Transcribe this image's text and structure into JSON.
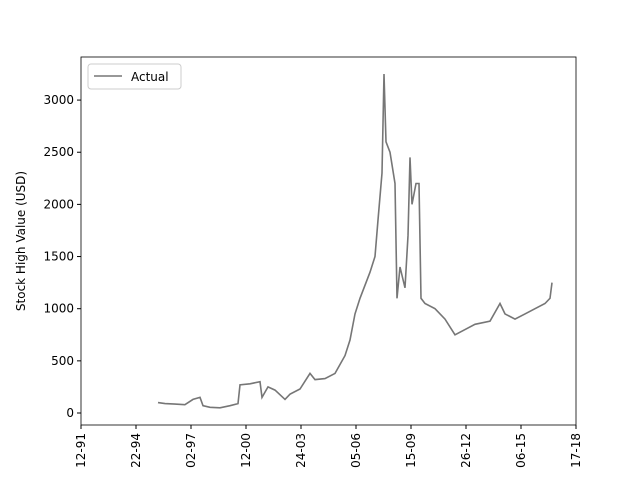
{
  "chart_data": {
    "type": "line",
    "y_label": "Stock High Value (USD)",
    "x": [
      1400,
      1527,
      1709,
      1890,
      2036,
      2164,
      2218,
      2345,
      2527,
      2709,
      2855,
      2891,
      3073,
      3255,
      3291,
      3400,
      3527,
      3709,
      3800,
      3982,
      4164,
      4255,
      4436,
      4618,
      4800,
      4891,
      4982,
      5073,
      5255,
      5345,
      5400,
      5473,
      5509,
      5545,
      5618,
      5709,
      5745,
      5800,
      5891,
      5945,
      5982,
      6018,
      6091,
      6145,
      6182,
      6255,
      6436,
      6618,
      6800,
      6982,
      7164,
      7436,
      7618,
      7709,
      7891,
      8073,
      8255,
      8436,
      8527,
      8564
    ],
    "series": [
      {
        "name": "Actual",
        "color": "#767676",
        "values": [
          100,
          90,
          85,
          80,
          130,
          150,
          70,
          55,
          50,
          70,
          90,
          270,
          280,
          300,
          150,
          250,
          220,
          130,
          180,
          230,
          380,
          320,
          330,
          380,
          550,
          700,
          950,
          1100,
          1350,
          1500,
          1850,
          2300,
          3250,
          2600,
          2500,
          2200,
          1100,
          1400,
          1200,
          1700,
          2450,
          2000,
          2200,
          2200,
          1100,
          1050,
          1000,
          900,
          750,
          800,
          850,
          880,
          1050,
          950,
          900,
          950,
          1000,
          1050,
          1100,
          1250
        ]
      }
    ],
    "xlim": [
      0,
      9000
    ],
    "xticks": [
      {
        "value": 0,
        "label": "12-91"
      },
      {
        "value": 1000,
        "label": "22-94"
      },
      {
        "value": 2000,
        "label": "02-97"
      },
      {
        "value": 3000,
        "label": "12-00"
      },
      {
        "value": 4000,
        "label": "24-03"
      },
      {
        "value": 5000,
        "label": "05-06"
      },
      {
        "value": 6000,
        "label": "15-09"
      },
      {
        "value": 7000,
        "label": "26-12"
      },
      {
        "value": 8000,
        "label": "06-15"
      },
      {
        "value": 9000,
        "label": "17-18"
      }
    ],
    "ylim": [
      -115,
      3413
    ],
    "yticks": [
      0,
      500,
      1000,
      1500,
      2000,
      2500,
      3000
    ],
    "legend": "upper-left"
  }
}
